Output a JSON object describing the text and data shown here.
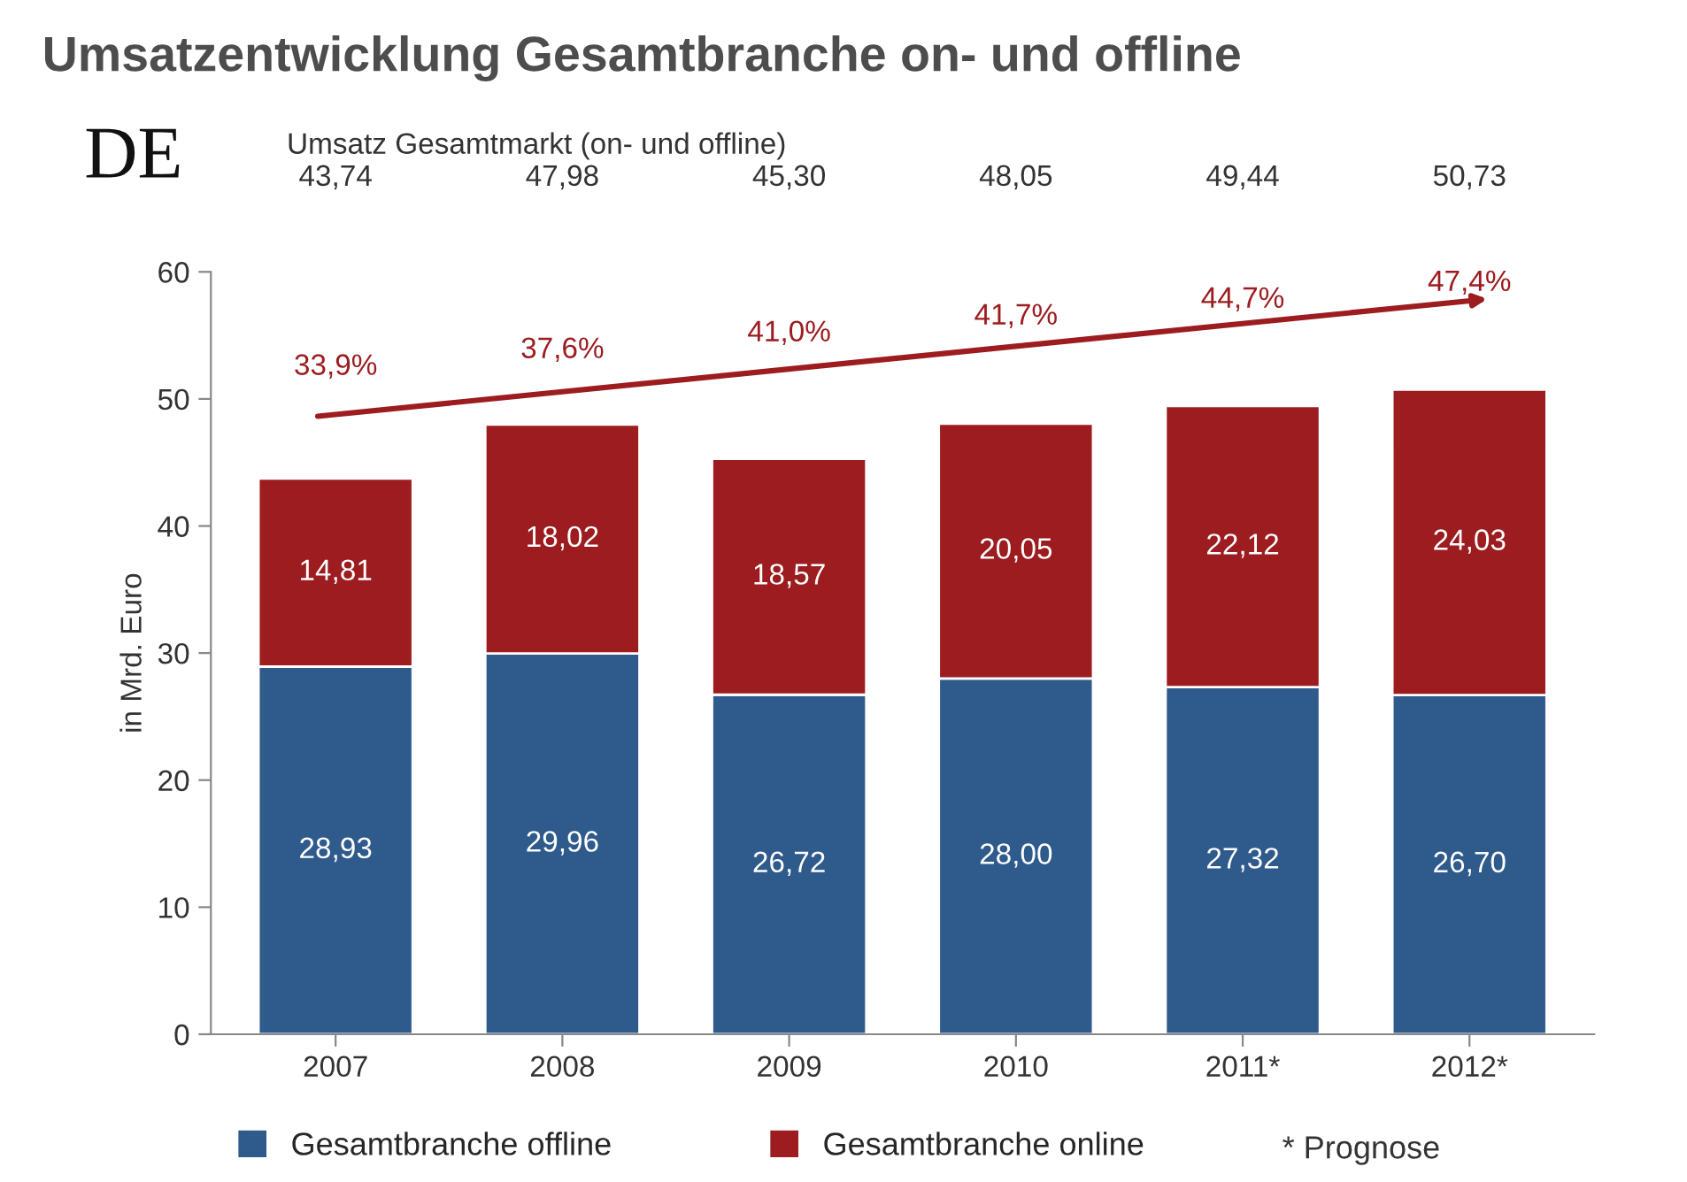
{
  "chart_data": {
    "type": "bar",
    "stacked": true,
    "title": "Umsatzentwicklung Gesamtbranche on- und offline",
    "ylabel": "in Mrd. Euro",
    "categories": [
      "2007",
      "2008",
      "2009",
      "2010",
      "2011*",
      "2012*"
    ],
    "series": [
      {
        "name": "Gesamtbranche offline",
        "color": "#2f5b8c",
        "values": [
          28.93,
          29.96,
          26.72,
          28.0,
          27.32,
          26.7
        ],
        "value_labels": [
          "28,93",
          "29,96",
          "26,72",
          "28,00",
          "27,32",
          "26,70"
        ]
      },
      {
        "name": "Gesamtbranche online",
        "color": "#9c1c20",
        "values": [
          14.81,
          18.02,
          18.57,
          20.05,
          22.12,
          24.03
        ],
        "value_labels": [
          "14,81",
          "18,02",
          "18,57",
          "20,05",
          "22,12",
          "24,03"
        ]
      }
    ],
    "ylim": [
      0,
      60
    ],
    "yticks": [
      0,
      10,
      20,
      30,
      40,
      50,
      60
    ],
    "grid": false,
    "legend": "bottom",
    "annotations": [
      "DE",
      "Umsatz Gesamtmarkt (on- und offline)",
      "43,74",
      "47,98",
      "45,30",
      "48,05",
      "49,44",
      "50,73",
      "33,9%",
      "37,6%",
      "41,0%",
      "41,7%",
      "44,7%",
      "47,4%",
      "* Prognose"
    ]
  }
}
